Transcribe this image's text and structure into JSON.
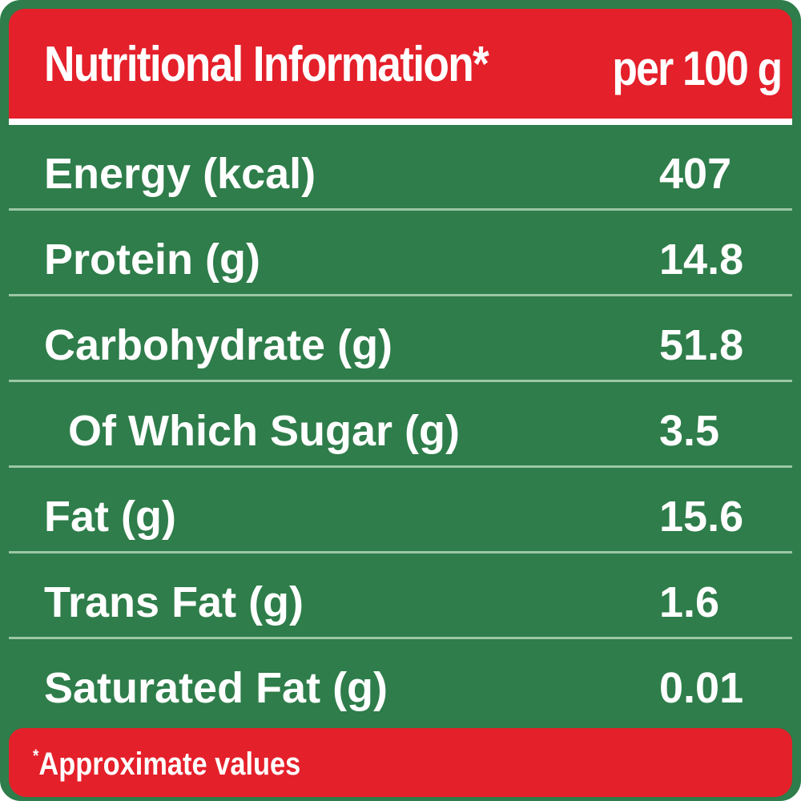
{
  "header": {
    "title": "Nutritional Information*",
    "unit": "per 100 g"
  },
  "rows": [
    {
      "nutrient": "Energy (kcal)",
      "value": "407"
    },
    {
      "nutrient": "Protein (g)",
      "value": "14.8"
    },
    {
      "nutrient": "Carbohydrate (g)",
      "value": "51.8"
    },
    {
      "nutrient": "Of Which Sugar (g)",
      "value": "3.5"
    },
    {
      "nutrient": "Fat (g)",
      "value": "15.6"
    },
    {
      "nutrient": "Trans Fat (g)",
      "value": "1.6"
    },
    {
      "nutrient": "Saturated Fat (g)",
      "value": "0.01"
    }
  ],
  "footer": {
    "asterisk": "*",
    "note": "Approximate values"
  },
  "colors": {
    "header_red": "#e4202a",
    "table_green": "#2e7d4a",
    "text_white": "#ffffff"
  }
}
